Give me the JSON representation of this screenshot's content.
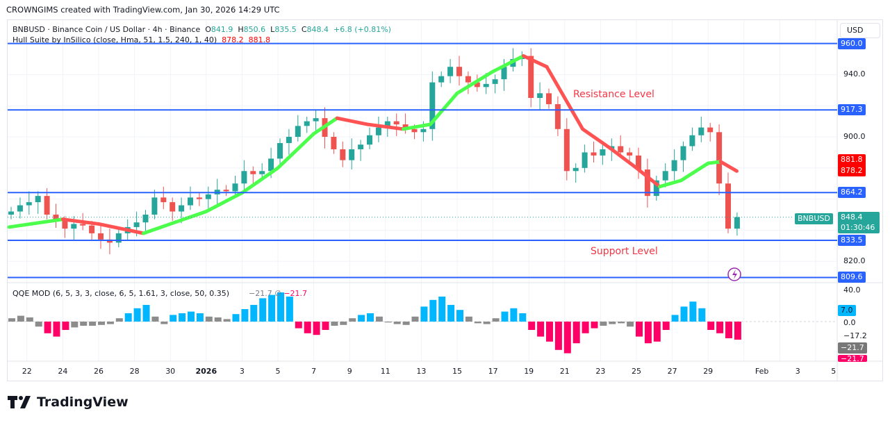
{
  "credit": "CROWNGIMS created with TradingView.com, Jan 30, 2026 14:29 UTC",
  "symbol": {
    "title": "BNBUSD · Binance Coin / US Dollar · 4h · Binance",
    "o_label": "O",
    "o": "841.9",
    "h_label": "H",
    "h": "850.6",
    "l_label": "L",
    "l": "835.5",
    "c_label": "C",
    "c": "848.4",
    "change": "+6.8 (+0.81%)"
  },
  "hull": {
    "label": "Hull Suite by InSilico (close, Hma, 51, 1.5, 240, 1, 40)",
    "v1": "878.2",
    "v2": "881.8"
  },
  "qqe": {
    "label": "QQE MOD (6, 5, 3, 3, close, 6, 5, 1.61, 3, close, 50, 0.35)",
    "v1": "−21.7",
    "sym": "∅",
    "v2": "−21.7"
  },
  "currency": "USD",
  "annotations": {
    "resistance": "Resistance Level",
    "support": "Support Level"
  },
  "levels": [
    {
      "value": 960.0,
      "label": "960.0"
    },
    {
      "value": 917.3,
      "label": "917.3"
    },
    {
      "value": 864.2,
      "label": "864.2"
    },
    {
      "value": 833.5,
      "label": "833.5"
    },
    {
      "value": 809.6,
      "label": "809.6"
    }
  ],
  "price_ticks": [
    {
      "v": 940,
      "label": "940.0"
    },
    {
      "v": 900,
      "label": "900.0"
    },
    {
      "v": 820,
      "label": "820.0"
    }
  ],
  "hull_tags": {
    "upper": "881.8",
    "lower": "878.2"
  },
  "last": {
    "symbol": "BNBUSD",
    "price": "848.4",
    "countdown": "01:30:46"
  },
  "qqe_axis": {
    "top": "40.0",
    "mid": "0.0",
    "low": "−17.2",
    "tag_blue": "7.0",
    "tag_grey": "−21.7",
    "tag_pink": "−21.7"
  },
  "dates": [
    {
      "d": 1,
      "label": "22"
    },
    {
      "d": 3,
      "label": "24"
    },
    {
      "d": 5,
      "label": "26"
    },
    {
      "d": 7,
      "label": "28"
    },
    {
      "d": 9,
      "label": "30"
    },
    {
      "d": 11,
      "label": "2026"
    },
    {
      "d": 13,
      "label": "3"
    },
    {
      "d": 15,
      "label": "5"
    },
    {
      "d": 17,
      "label": "7"
    },
    {
      "d": 19,
      "label": "9"
    },
    {
      "d": 21,
      "label": "11"
    },
    {
      "d": 23,
      "label": "13"
    },
    {
      "d": 25,
      "label": "15"
    },
    {
      "d": 27,
      "label": "17"
    },
    {
      "d": 29,
      "label": "19"
    },
    {
      "d": 31,
      "label": "21"
    },
    {
      "d": 33,
      "label": "23"
    },
    {
      "d": 35,
      "label": "25"
    },
    {
      "d": 37,
      "label": "27"
    },
    {
      "d": 39,
      "label": "29"
    },
    {
      "d": 42,
      "label": "Feb"
    },
    {
      "d": 44,
      "label": "3"
    },
    {
      "d": 46,
      "label": "5"
    }
  ],
  "brand": "TradingView",
  "colors": {
    "up": "#26a69a",
    "down": "#ef5350",
    "level": "#2962ff",
    "hull_up": "#4cff4c",
    "hull_down": "#ff5252",
    "qqe_blue": "#00b7ff",
    "qqe_grey": "#8c8c8c",
    "qqe_pink": "#ff0066"
  },
  "chart_data": {
    "type": "candlestick",
    "interval_note": "12h approx closes from Dec 21",
    "start_open": 850,
    "closes": [
      852,
      856,
      858,
      862,
      850,
      846,
      841,
      844,
      843,
      838,
      834,
      832,
      838,
      842,
      845,
      850,
      861,
      858,
      852,
      856,
      861,
      860,
      863,
      866,
      865,
      870,
      878,
      876,
      878,
      886,
      896,
      900,
      907,
      910,
      912,
      900,
      892,
      885,
      892,
      895,
      901,
      906,
      910,
      908,
      905,
      903,
      905,
      935,
      939,
      945,
      939,
      935,
      932,
      934,
      937,
      945,
      950,
      952,
      925,
      928,
      921,
      905,
      878,
      880,
      890,
      888,
      892,
      894,
      890,
      888,
      879,
      862,
      872,
      878,
      885,
      894,
      901,
      906,
      903,
      870,
      841,
      848.4
    ],
    "hull": [
      {
        "d": 0,
        "v": 842,
        "c": "up"
      },
      {
        "d": 3,
        "v": 847,
        "c": "down"
      },
      {
        "d": 5,
        "v": 844,
        "c": "down"
      },
      {
        "d": 7.5,
        "v": 838,
        "c": "up"
      },
      {
        "d": 11,
        "v": 852,
        "c": "up"
      },
      {
        "d": 13,
        "v": 864,
        "c": "up"
      },
      {
        "d": 15,
        "v": 880,
        "c": "up"
      },
      {
        "d": 17,
        "v": 902,
        "c": "up"
      },
      {
        "d": 18.3,
        "v": 912,
        "c": "down"
      },
      {
        "d": 20,
        "v": 908,
        "c": "down"
      },
      {
        "d": 22,
        "v": 905,
        "c": "up"
      },
      {
        "d": 23.5,
        "v": 908,
        "c": "up"
      },
      {
        "d": 25,
        "v": 928,
        "c": "up"
      },
      {
        "d": 27,
        "v": 942,
        "c": "up"
      },
      {
        "d": 28.7,
        "v": 952,
        "c": "down"
      },
      {
        "d": 30,
        "v": 945,
        "c": "down"
      },
      {
        "d": 31,
        "v": 925,
        "c": "down"
      },
      {
        "d": 32,
        "v": 905,
        "c": "down"
      },
      {
        "d": 33.5,
        "v": 893,
        "c": "down"
      },
      {
        "d": 35,
        "v": 880,
        "c": "down"
      },
      {
        "d": 36.3,
        "v": 868,
        "c": "up"
      },
      {
        "d": 37.5,
        "v": 872,
        "c": "up"
      },
      {
        "d": 39,
        "v": 883,
        "c": "up"
      },
      {
        "d": 39.7,
        "v": 884,
        "c": "down"
      },
      {
        "d": 40.6,
        "v": 878,
        "c": "down"
      }
    ],
    "qqe": [
      4,
      7,
      5,
      -6,
      -14,
      -18,
      -10,
      -7,
      -5,
      -5,
      -4,
      -3,
      4,
      10,
      16,
      20,
      6,
      -3,
      8,
      10,
      12,
      10,
      6,
      5,
      3,
      9,
      15,
      20,
      28,
      32,
      35,
      30,
      -8,
      -14,
      -16,
      -10,
      -5,
      -4,
      4,
      8,
      10,
      6,
      -1,
      -3,
      -4,
      6,
      18,
      26,
      30,
      20,
      14,
      6,
      -2,
      -3,
      4,
      12,
      16,
      10,
      -10,
      -18,
      -24,
      -34,
      -38,
      -26,
      -14,
      -8,
      -5,
      -3,
      -2,
      -6,
      -18,
      -26,
      -24,
      -10,
      8,
      18,
      24,
      16,
      -10,
      -14,
      -20,
      -21.7
    ]
  }
}
